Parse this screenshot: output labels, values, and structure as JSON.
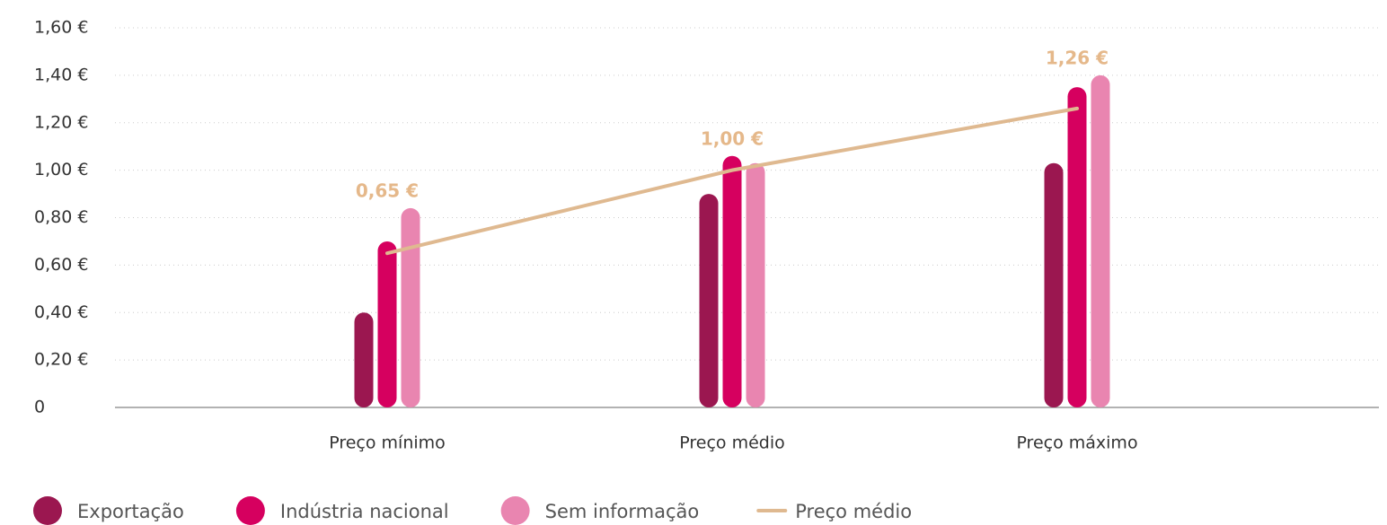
{
  "chart_data": {
    "type": "bar",
    "categories": [
      "Preço mínimo",
      "Preço médio",
      "Preço máximo"
    ],
    "series": [
      {
        "name": "Exportação",
        "color": "#9b1750",
        "values": [
          0.4,
          0.9,
          1.03
        ]
      },
      {
        "name": "Indústria nacional",
        "color": "#d6005f",
        "values": [
          0.7,
          1.06,
          1.35
        ]
      },
      {
        "name": "Sem informação",
        "color": "#e985b0",
        "values": [
          0.84,
          1.03,
          1.4
        ]
      },
      {
        "name": "Preço médio",
        "type": "line",
        "color": "#dfb990",
        "values": [
          0.65,
          1.0,
          1.26
        ],
        "value_labels": [
          "0,65 €",
          "1,00 €",
          "1,26 €"
        ]
      }
    ],
    "ylim": [
      0,
      1.6
    ],
    "yticks": [
      0,
      {
        "value": 0.2,
        "label": "0,20 €"
      },
      {
        "value": 0.4,
        "label": "0,40 €"
      },
      {
        "value": 0.6,
        "label": "0,60 €"
      },
      {
        "value": 0.8,
        "label": "0,80 €"
      },
      {
        "value": 1.0,
        "label": "1,00 €"
      },
      {
        "value": 1.2,
        "label": "1,20 €"
      },
      {
        "value": 1.4,
        "label": "1,40 €"
      },
      {
        "value": 1.6,
        "label": "1,60 €"
      }
    ],
    "grid": true,
    "legend": "bottom"
  }
}
